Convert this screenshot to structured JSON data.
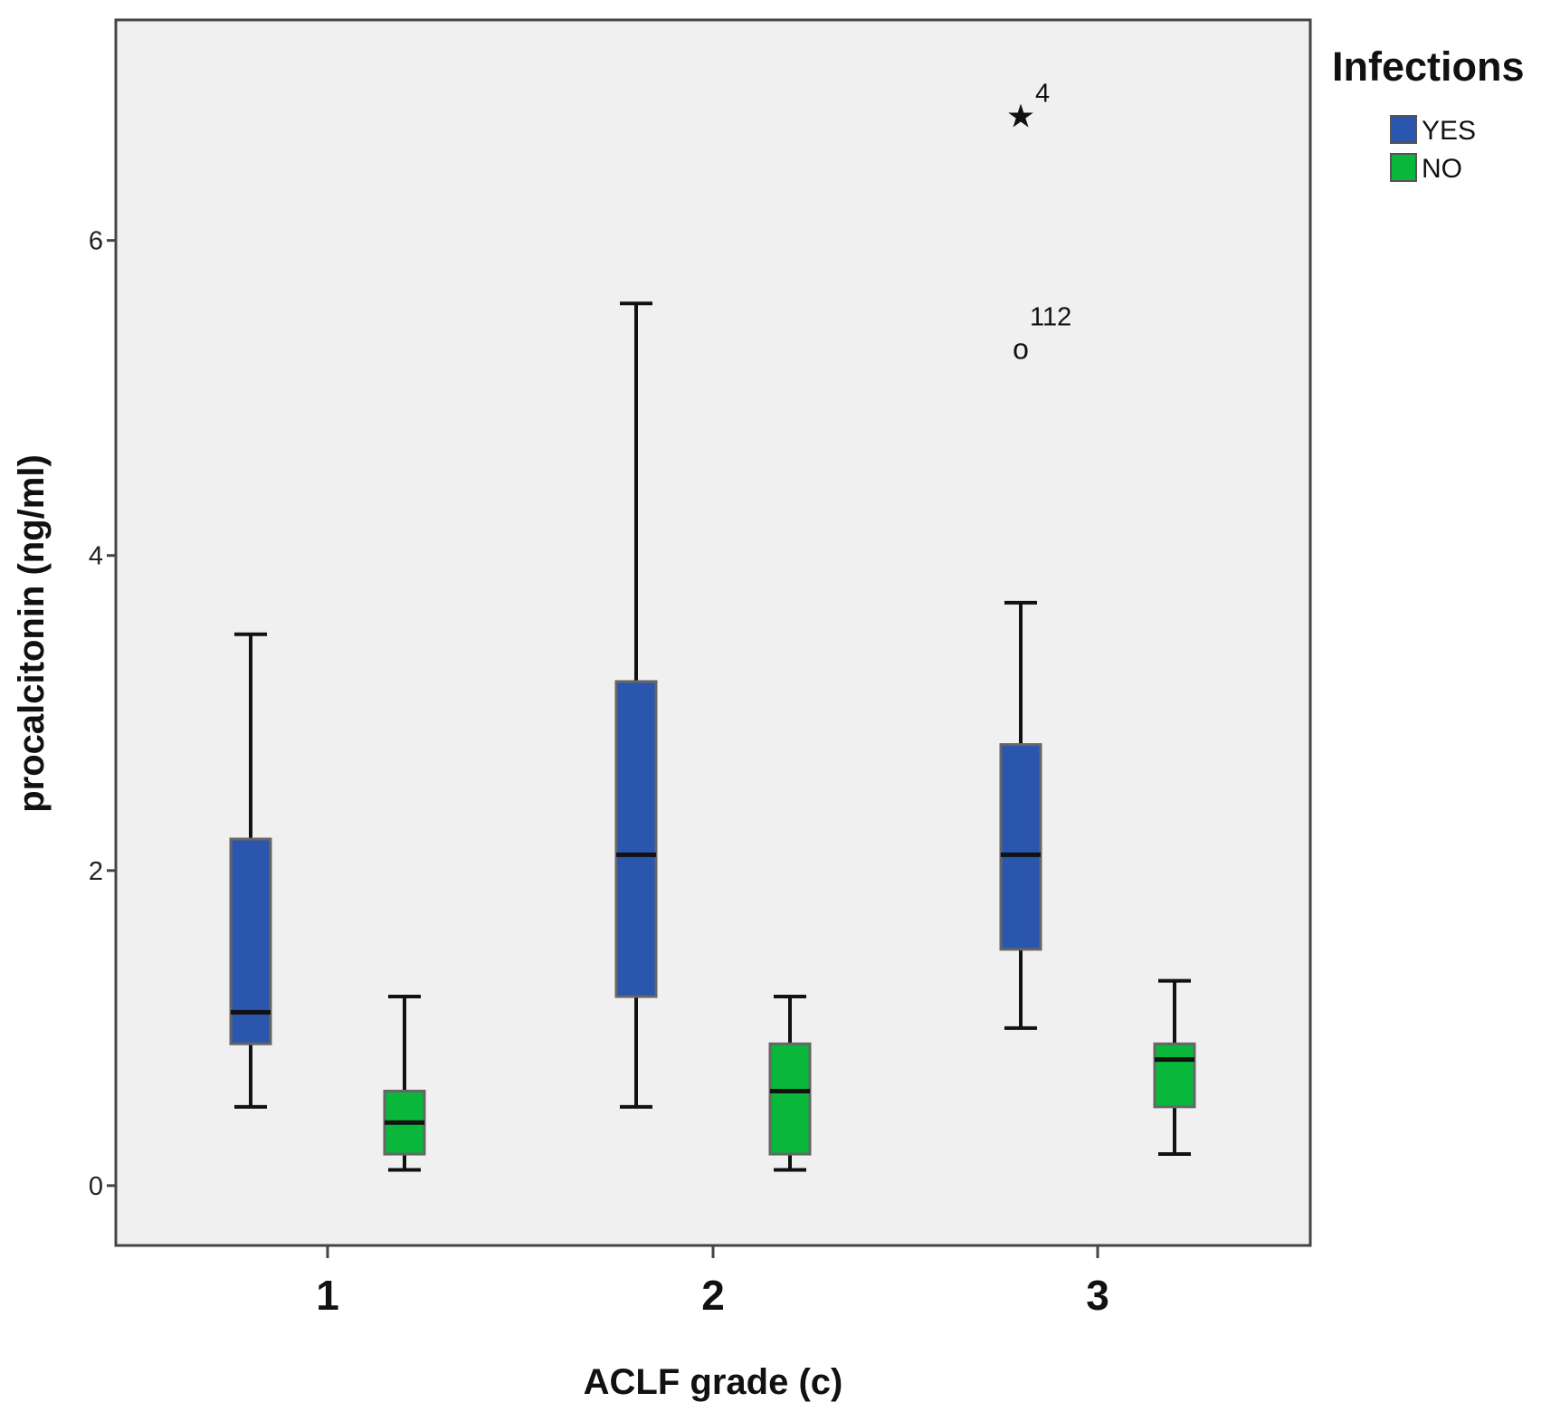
{
  "chart_data": {
    "type": "boxplot",
    "title": "",
    "xlabel": "ACLF grade (c)",
    "ylabel": "procalcitonin (ng/ml)",
    "ylim": [
      -0.38,
      7.4
    ],
    "yticks": [
      0,
      2,
      4,
      6
    ],
    "ytick_labels": [
      "0",
      "2",
      "4",
      "6"
    ],
    "categories": [
      "1",
      "2",
      "3"
    ],
    "legend": {
      "title": "Infections",
      "position": "top-right",
      "entries": [
        {
          "name": "YES",
          "color": "#2b56ad"
        },
        {
          "name": "NO",
          "color": "#09b83a"
        }
      ]
    },
    "series": [
      {
        "name": "YES",
        "color": "#2b56ad",
        "boxes": [
          {
            "category": "1",
            "whisker_low": 0.5,
            "q1": 0.9,
            "median": 1.1,
            "q3": 2.2,
            "whisker_high": 3.5
          },
          {
            "category": "2",
            "whisker_low": 0.5,
            "q1": 1.2,
            "median": 2.1,
            "q3": 3.2,
            "whisker_high": 5.6
          },
          {
            "category": "3",
            "whisker_low": 1.0,
            "q1": 1.5,
            "median": 2.1,
            "q3": 2.8,
            "whisker_high": 3.7
          }
        ]
      },
      {
        "name": "NO",
        "color": "#09b83a",
        "boxes": [
          {
            "category": "1",
            "whisker_low": 0.1,
            "q1": 0.2,
            "median": 0.4,
            "q3": 0.6,
            "whisker_high": 1.2
          },
          {
            "category": "2",
            "whisker_low": 0.1,
            "q1": 0.2,
            "median": 0.6,
            "q3": 0.9,
            "whisker_high": 1.2
          },
          {
            "category": "3",
            "whisker_low": 0.2,
            "q1": 0.5,
            "median": 0.8,
            "q3": 0.9,
            "whisker_high": 1.3
          }
        ]
      }
    ],
    "outliers": [
      {
        "category": "3",
        "series": "YES",
        "value": 6.8,
        "marker": "star",
        "symbol": "★",
        "label": "4"
      },
      {
        "category": "3",
        "series": "YES",
        "value": 5.3,
        "marker": "circle",
        "symbol": "o",
        "label": "112"
      }
    ]
  }
}
